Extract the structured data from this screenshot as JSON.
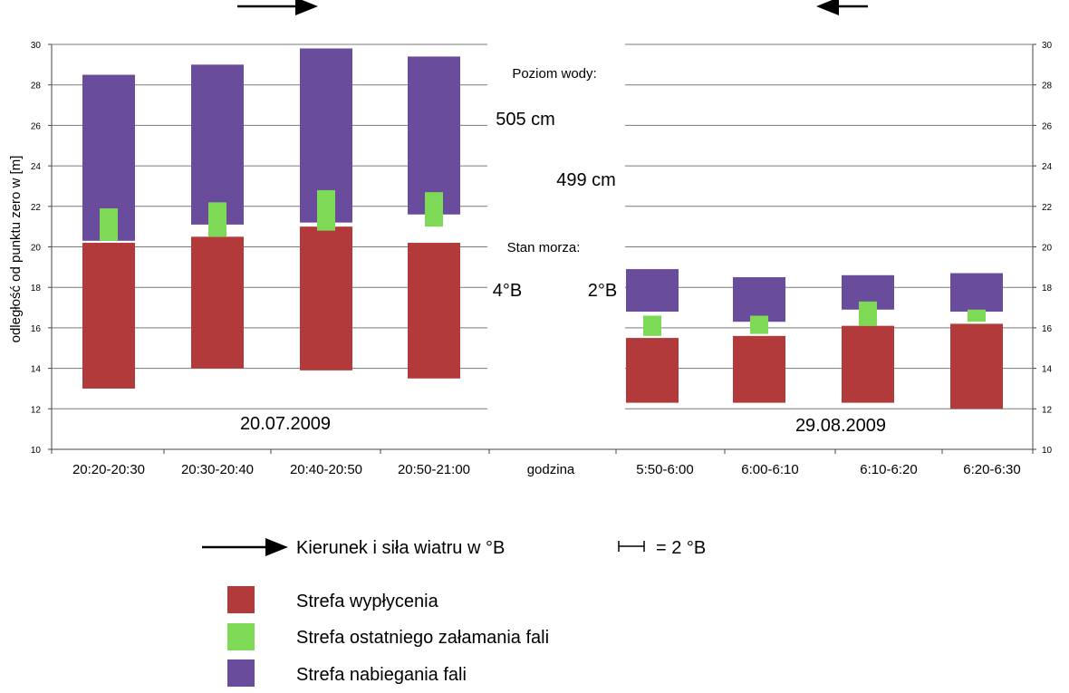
{
  "colors": {
    "wyplycenie": "#b23a3a",
    "zalamanie": "#7ed957",
    "nabieganie": "#6a4c9c",
    "grid": "#7a7a7a"
  },
  "chart_data": {
    "type": "bar",
    "subtype": "floating-range",
    "ylabel": "odległość od punktu zero w [m]",
    "xlabel": "godzina",
    "ylim": [
      10,
      30
    ],
    "yticks": [
      10,
      12,
      14,
      16,
      18,
      20,
      22,
      24,
      26,
      28,
      30
    ],
    "grid": true,
    "legend_position": "bottom",
    "series_names": [
      "Strefa wypłycenia",
      "Strefa ostatniego załamania fali",
      "Strefa nabiegania fali"
    ],
    "panels": [
      {
        "date": "20.07.2009",
        "wind_direction": "right",
        "water_level": "505 cm",
        "sea_state": "4°B",
        "categories": [
          "20:20-20:30",
          "20:30-20:40",
          "20:40-20:50",
          "20:50-21:00"
        ],
        "wyplycenie": [
          [
            13.0,
            20.2
          ],
          [
            14.0,
            20.5
          ],
          [
            13.9,
            21.0
          ],
          [
            13.5,
            20.2
          ]
        ],
        "zalamanie": [
          [
            20.3,
            21.9
          ],
          [
            20.5,
            22.2
          ],
          [
            20.8,
            22.8
          ],
          [
            21.0,
            22.7
          ]
        ],
        "nabieganie": [
          [
            20.3,
            28.5
          ],
          [
            21.1,
            29.0
          ],
          [
            21.2,
            29.8
          ],
          [
            21.6,
            29.4
          ]
        ]
      },
      {
        "date": "29.08.2009",
        "wind_direction": "left",
        "water_level": "499 cm",
        "sea_state": "2°B",
        "categories": [
          "5:50-6:00",
          "6:00-6:10",
          "6:10-6:20",
          "6:20-6:30"
        ],
        "wyplycenie": [
          [
            12.3,
            15.5
          ],
          [
            12.3,
            15.6
          ],
          [
            12.3,
            16.1
          ],
          [
            12.0,
            16.2
          ]
        ],
        "zalamanie": [
          [
            15.6,
            16.6
          ],
          [
            15.7,
            16.6
          ],
          [
            16.1,
            17.3
          ],
          [
            16.3,
            16.9
          ]
        ],
        "nabieganie": [
          [
            16.8,
            18.9
          ],
          [
            16.3,
            18.5
          ],
          [
            16.9,
            18.6
          ],
          [
            16.8,
            18.7
          ]
        ]
      }
    ],
    "annotations": {
      "water_level_label": "Poziom wody:",
      "sea_state_label": "Stan morza:"
    }
  },
  "legend": {
    "wind_text": "Kierunek i siła wiatru w °B",
    "scale_text": "= 2 °B",
    "items": [
      "Strefa wypłycenia",
      "Strefa ostatniego załamania fali",
      "Strefa nabiegania fali"
    ]
  }
}
